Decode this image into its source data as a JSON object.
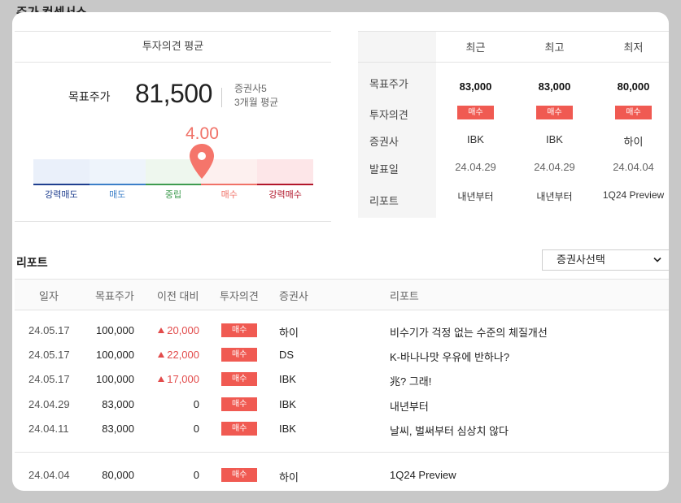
{
  "header": {
    "title": "주가 컨센서스"
  },
  "summary": {
    "panel_title": "투자의견 평균",
    "target_price_label": "목표주가",
    "target_price": "81,500",
    "broker_count": "증권사5",
    "period": "3개월 평균",
    "score": "4.00",
    "score_value": 4.0,
    "scale": [
      {
        "label": "강력매도",
        "color": "#1f3f8f",
        "fill": "#eaf0fa"
      },
      {
        "label": "매도",
        "color": "#3c7fc8",
        "fill": "#eef4fb"
      },
      {
        "label": "중립",
        "color": "#3e9b4f",
        "fill": "#eef7ee"
      },
      {
        "label": "매수",
        "color": "#f07167",
        "fill": "#fdf0ef"
      },
      {
        "label": "강력매수",
        "color": "#b2162a",
        "fill": "#fde6e8"
      }
    ]
  },
  "compare": {
    "columns": [
      "최근",
      "최고",
      "최저"
    ],
    "row_labels": [
      "목표주가",
      "투자의견",
      "증권사",
      "발표일",
      "리포트"
    ],
    "target_prices": [
      "83,000",
      "83,000",
      "80,000"
    ],
    "opinions": [
      "매수",
      "매수",
      "매수"
    ],
    "brokers": [
      "IBK",
      "IBK",
      "하이"
    ],
    "dates": [
      "24.04.29",
      "24.04.29",
      "24.04.04"
    ],
    "reports": [
      "내년부터",
      "내년부터",
      "1Q24 Preview"
    ]
  },
  "report": {
    "title": "리포트",
    "broker_select": "증권사선택",
    "headers": [
      "일자",
      "목표주가",
      "이전 대비",
      "투자의견",
      "증권사",
      "리포트"
    ],
    "rows": [
      {
        "date": "24.05.17",
        "target": "100,000",
        "change": "20,000",
        "up": true,
        "opinion": "매수",
        "broker": "하이",
        "title": "비수기가 걱정 없는 수준의 체질개선"
      },
      {
        "date": "24.05.17",
        "target": "100,000",
        "change": "22,000",
        "up": true,
        "opinion": "매수",
        "broker": "DS",
        "title": "K-바나나맛 우유에 반하나?"
      },
      {
        "date": "24.05.17",
        "target": "100,000",
        "change": "17,000",
        "up": true,
        "opinion": "매수",
        "broker": "IBK",
        "title": "兆? 그래!"
      },
      {
        "date": "24.04.29",
        "target": "83,000",
        "change": "0",
        "up": false,
        "opinion": "매수",
        "broker": "IBK",
        "title": "내년부터"
      },
      {
        "date": "24.04.11",
        "target": "83,000",
        "change": "0",
        "up": false,
        "opinion": "매수",
        "broker": "IBK",
        "title": "날씨, 벌써부터 심상치 않다"
      },
      {
        "date": "24.04.04",
        "target": "80,000",
        "change": "0",
        "up": false,
        "opinion": "매수",
        "broker": "하이",
        "title": "1Q24 Preview"
      }
    ]
  }
}
